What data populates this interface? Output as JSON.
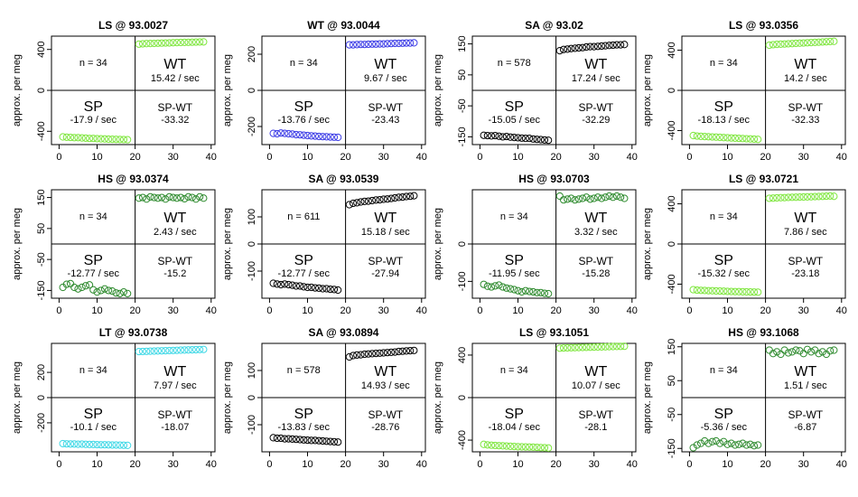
{
  "chart_data": [
    {
      "type": "scatter",
      "title": "LS @ 93.0027",
      "ylabel": "approx. per meg",
      "x_ticks": [
        0,
        10,
        20,
        30,
        40
      ],
      "xlim": [
        0,
        40
      ],
      "ylim": [
        -530,
        530
      ],
      "y_ticks": [
        -400,
        0,
        400
      ],
      "n_label": "n = 34",
      "wt_label": "WT",
      "wt_rate": "15.42 / sec",
      "sp_label": "SP",
      "sp_rate": "-17.9 / sec",
      "spwt_label": "SP-WT",
      "spwt_value": "-33.32",
      "color": "#7fe63f",
      "sp_values": [
        -455,
        -458,
        -460,
        -462,
        -462,
        -465,
        -467,
        -470,
        -470,
        -472,
        -474,
        -475,
        -477,
        -478,
        -479,
        -480,
        -481,
        -482
      ],
      "wt_values": [
        452,
        455,
        457,
        458,
        459,
        461,
        462,
        463,
        464,
        466,
        467,
        468,
        469,
        470,
        471,
        472,
        473,
        474
      ]
    },
    {
      "type": "scatter",
      "title": "WT @ 93.0044",
      "ylabel": "approx. per meg",
      "x_ticks": [
        0,
        10,
        20,
        30,
        40
      ],
      "xlim": [
        0,
        40
      ],
      "ylim": [
        -300,
        300
      ],
      "y_ticks": [
        -200,
        0,
        200
      ],
      "n_label": "n = 34",
      "wt_label": "WT",
      "wt_rate": "9.67 / sec",
      "sp_label": "SP",
      "sp_rate": "-13.76 / sec",
      "spwt_label": "SP-WT",
      "spwt_value": "-23.43",
      "color": "#3a3ae6",
      "sp_values": [
        -238,
        -240,
        -236,
        -238,
        -240,
        -242,
        -245,
        -246,
        -248,
        -250,
        -252,
        -253,
        -255,
        -256,
        -257,
        -258,
        -259,
        -260
      ],
      "wt_values": [
        252,
        252,
        253,
        254,
        254,
        255,
        256,
        256,
        257,
        257,
        258,
        259,
        260,
        260,
        261,
        262,
        262,
        263
      ]
    },
    {
      "type": "scatter",
      "title": "SA @ 93.02",
      "ylabel": "approx. per meg",
      "x_ticks": [
        0,
        10,
        20,
        30,
        40
      ],
      "xlim": [
        0,
        40
      ],
      "ylim": [
        -175,
        175
      ],
      "y_ticks": [
        -150,
        -50,
        50,
        150
      ],
      "y_tick_labels": [
        "-150",
        "",
        "",
        "150"
      ],
      "extra_ticks": [
        {
          "v": 100,
          "t": "100"
        },
        {
          "v": 0,
          "t": "0"
        }
      ],
      "n_label": "n = 578",
      "wt_label": "WT",
      "wt_rate": "17.24 / sec",
      "sp_label": "SP",
      "sp_rate": "-15.05 / sec",
      "spwt_label": "SP-WT",
      "spwt_value": "-32.29",
      "color": "#000000",
      "sp_values": [
        -145,
        -146,
        -147,
        -146,
        -148,
        -150,
        -149,
        -151,
        -152,
        -153,
        -154,
        -155,
        -155,
        -157,
        -158,
        -159,
        -160,
        -161
      ],
      "wt_values": [
        128,
        132,
        133,
        135,
        136,
        137,
        138,
        140,
        141,
        141,
        142,
        143,
        144,
        145,
        146,
        147,
        147,
        148
      ]
    },
    {
      "type": "scatter",
      "title": "LS @ 93.0356",
      "ylabel": "approx. per meg",
      "x_ticks": [
        0,
        10,
        20,
        30,
        40
      ],
      "xlim": [
        0,
        40
      ],
      "ylim": [
        -540,
        540
      ],
      "y_ticks": [
        -400,
        0,
        400
      ],
      "n_label": "n = 34",
      "wt_label": "WT",
      "wt_rate": "14.2 / sec",
      "sp_label": "SP",
      "sp_rate": "-18.13 / sec",
      "spwt_label": "SP-WT",
      "spwt_value": "-32.33",
      "color": "#7fe63f",
      "sp_values": [
        -450,
        -455,
        -458,
        -460,
        -462,
        -464,
        -466,
        -468,
        -470,
        -472,
        -474,
        -476,
        -478,
        -480,
        -482,
        -484,
        -486,
        -488
      ],
      "wt_values": [
        450,
        455,
        458,
        460,
        462,
        464,
        466,
        468,
        470,
        472,
        474,
        476,
        478,
        480,
        482,
        484,
        486,
        488
      ]
    },
    {
      "type": "scatter",
      "title": "HS @ 93.0374",
      "ylabel": "approx. per meg",
      "x_ticks": [
        0,
        10,
        20,
        30,
        40
      ],
      "xlim": [
        0,
        40
      ],
      "ylim": [
        -175,
        175
      ],
      "y_ticks": [
        -150,
        -50,
        50,
        150
      ],
      "n_label": "n = 34",
      "wt_label": "WT",
      "wt_rate": "2.43 / sec",
      "sp_label": "SP",
      "sp_rate": "-12.77 / sec",
      "spwt_label": "SP-WT",
      "spwt_value": "-15.2",
      "color": "#2d8a2d",
      "sp_values": [
        -140,
        -130,
        -128,
        -140,
        -145,
        -140,
        -135,
        -132,
        -148,
        -155,
        -150,
        -145,
        -150,
        -152,
        -158,
        -160,
        -155,
        -160
      ],
      "wt_values": [
        148,
        150,
        145,
        152,
        150,
        148,
        150,
        145,
        152,
        150,
        148,
        150,
        146,
        152,
        150,
        145,
        152,
        148
      ]
    },
    {
      "type": "scatter",
      "title": "SA @ 93.0539",
      "ylabel": "approx. per meg",
      "x_ticks": [
        0,
        10,
        20,
        30,
        40
      ],
      "xlim": [
        0,
        40
      ],
      "ylim": [
        -200,
        200
      ],
      "y_ticks": [
        -100,
        0,
        100
      ],
      "n_label": "n = 611",
      "wt_label": "WT",
      "wt_rate": "15.18 / sec",
      "sp_label": "SP",
      "sp_rate": "-12.77 / sec",
      "spwt_label": "SP-WT",
      "spwt_value": "-27.94",
      "color": "#000000",
      "sp_values": [
        -145,
        -148,
        -150,
        -148,
        -150,
        -152,
        -155,
        -155,
        -158,
        -160,
        -160,
        -162,
        -163,
        -165,
        -165,
        -167,
        -168,
        -170
      ],
      "wt_values": [
        145,
        150,
        152,
        155,
        157,
        158,
        160,
        162,
        163,
        165,
        166,
        168,
        170,
        172,
        173,
        175,
        176,
        178
      ]
    },
    {
      "type": "scatter",
      "title": "HS @ 93.0703",
      "ylabel": "approx. per meg",
      "x_ticks": [
        0,
        10,
        20,
        30,
        40
      ],
      "xlim": [
        0,
        40
      ],
      "ylim": [
        -145,
        145
      ],
      "y_ticks": [
        -100,
        0
      ],
      "n_label": "n = 34",
      "wt_label": "WT",
      "wt_rate": "3.32 / sec",
      "sp_label": "SP",
      "sp_rate": "-11.95 / sec",
      "spwt_label": "SP-WT",
      "spwt_value": "-15.28",
      "color": "#2d8a2d",
      "sp_values": [
        -108,
        -113,
        -115,
        -112,
        -110,
        -115,
        -118,
        -120,
        -122,
        -125,
        -128,
        -125,
        -127,
        -128,
        -130,
        -130,
        -132,
        -133
      ],
      "wt_values": [
        128,
        118,
        120,
        122,
        118,
        120,
        122,
        125,
        120,
        122,
        125,
        122,
        125,
        128,
        125,
        128,
        125,
        122
      ]
    },
    {
      "type": "scatter",
      "title": "LS @ 93.0721",
      "ylabel": "approx. per meg",
      "x_ticks": [
        0,
        10,
        20,
        30,
        40
      ],
      "xlim": [
        0,
        40
      ],
      "ylim": [
        -540,
        540
      ],
      "y_ticks": [
        -400,
        0,
        400
      ],
      "n_label": "n = 34",
      "wt_label": "WT",
      "wt_rate": "7.86 / sec",
      "sp_label": "SP",
      "sp_rate": "-15.32 / sec",
      "spwt_label": "SP-WT",
      "spwt_value": "-23.18",
      "color": "#7fe63f",
      "sp_values": [
        -455,
        -460,
        -462,
        -463,
        -465,
        -466,
        -468,
        -469,
        -470,
        -472,
        -473,
        -474,
        -475,
        -476,
        -477,
        -478,
        -479,
        -480
      ],
      "wt_values": [
        455,
        457,
        459,
        461,
        462,
        464,
        465,
        466,
        467,
        468,
        469,
        470,
        472,
        473,
        474,
        476,
        478,
        475
      ]
    },
    {
      "type": "scatter",
      "title": "LT @ 93.0738",
      "ylabel": "approx. per meg",
      "x_ticks": [
        0,
        10,
        20,
        30,
        40
      ],
      "xlim": [
        0,
        40
      ],
      "ylim": [
        -430,
        430
      ],
      "y_ticks": [
        -200,
        0,
        200
      ],
      "n_label": "n = 34",
      "wt_label": "WT",
      "wt_rate": "7.97 / sec",
      "sp_label": "SP",
      "sp_rate": "-10.1 / sec",
      "spwt_label": "SP-WT",
      "spwt_value": "-18.07",
      "color": "#3fd8e6",
      "sp_values": [
        -365,
        -367,
        -368,
        -368,
        -370,
        -369,
        -371,
        -372,
        -372,
        -373,
        -374,
        -374,
        -375,
        -376,
        -376,
        -377,
        -378,
        -379
      ],
      "wt_values": [
        365,
        366,
        367,
        368,
        369,
        370,
        371,
        372,
        373,
        374,
        375,
        376,
        377,
        378,
        379,
        380,
        381,
        382
      ]
    },
    {
      "type": "scatter",
      "title": "SA @ 93.0894",
      "ylabel": "approx. per meg",
      "x_ticks": [
        0,
        10,
        20,
        30,
        40
      ],
      "xlim": [
        0,
        40
      ],
      "ylim": [
        -200,
        200
      ],
      "y_ticks": [
        -100,
        0,
        100
      ],
      "n_label": "n = 578",
      "wt_label": "WT",
      "wt_rate": "14.93 / sec",
      "sp_label": "SP",
      "sp_rate": "-13.83 / sec",
      "spwt_label": "SP-WT",
      "spwt_value": "-28.76",
      "color": "#000000",
      "sp_values": [
        -148,
        -150,
        -150,
        -152,
        -152,
        -153,
        -154,
        -155,
        -156,
        -157,
        -158,
        -158,
        -159,
        -160,
        -161,
        -162,
        -163,
        -164
      ],
      "wt_values": [
        150,
        155,
        157,
        158,
        160,
        161,
        162,
        163,
        164,
        165,
        166,
        167,
        168,
        170,
        171,
        172,
        173,
        174
      ]
    },
    {
      "type": "scatter",
      "title": "LS @ 93.1051",
      "ylabel": "approx. per meg",
      "x_ticks": [
        0,
        10,
        20,
        30,
        40
      ],
      "xlim": [
        0,
        40
      ],
      "ylim": [
        -510,
        510
      ],
      "y_ticks": [
        -400,
        0,
        400
      ],
      "n_label": "n = 34",
      "wt_label": "WT",
      "wt_rate": "10.07 / sec",
      "sp_label": "SP",
      "sp_rate": "-18.04 / sec",
      "spwt_label": "SP-WT",
      "spwt_value": "-28.1",
      "color": "#7fe63f",
      "sp_values": [
        -440,
        -445,
        -448,
        -450,
        -452,
        -454,
        -456,
        -458,
        -460,
        -462,
        -463,
        -464,
        -465,
        -466,
        -468,
        -470,
        -472,
        -474
      ],
      "wt_values": [
        465,
        467,
        468,
        469,
        470,
        471,
        472,
        473,
        474,
        475,
        476,
        477,
        478,
        479,
        480,
        481,
        482,
        483
      ]
    },
    {
      "type": "scatter",
      "title": "HS @ 93.1068",
      "ylabel": "approx. per meg",
      "x_ticks": [
        0,
        10,
        20,
        30,
        40
      ],
      "xlim": [
        0,
        40
      ],
      "ylim": [
        -160,
        160
      ],
      "y_ticks": [
        -150,
        -50,
        50,
        150
      ],
      "n_label": "n = 34",
      "wt_label": "WT",
      "wt_rate": "1.51 / sec",
      "sp_label": "SP",
      "sp_rate": "-5.36 / sec",
      "spwt_label": "SP-WT",
      "spwt_value": "-6.87",
      "color": "#2d8a2d",
      "sp_values": [
        -148,
        -140,
        -135,
        -128,
        -135,
        -130,
        -128,
        -135,
        -130,
        -138,
        -135,
        -140,
        -138,
        -135,
        -140,
        -138,
        -142,
        -140
      ],
      "wt_values": [
        140,
        130,
        135,
        128,
        140,
        132,
        135,
        140,
        138,
        130,
        142,
        135,
        140,
        130,
        135,
        128,
        138,
        140
      ]
    }
  ]
}
